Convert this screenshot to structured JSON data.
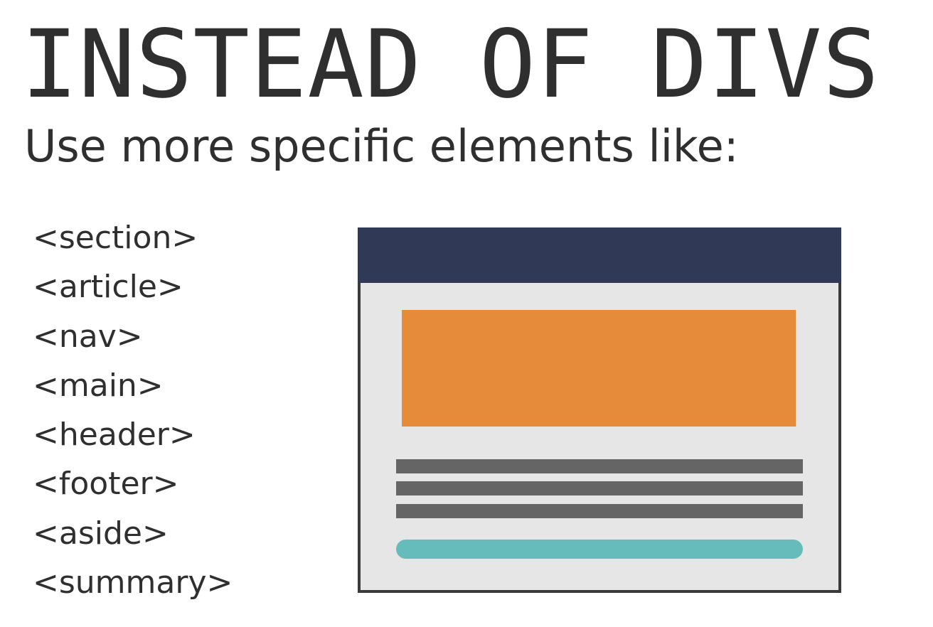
{
  "title": "INSTEAD OF DIVS",
  "subtitle": "Use more specific elements like:",
  "elements": [
    "<section>",
    "<article>",
    "<nav>",
    "<main>",
    "<header>",
    "<footer>",
    "<aside>",
    "<summary>"
  ],
  "colors": {
    "text": "#2f2f2f",
    "mockup_header": "#303a56",
    "mockup_hero": "#e68b39",
    "mockup_lines": "#656565",
    "mockup_button": "#66bcbb",
    "mockup_background": "#e6e6e6",
    "mockup_border": "#3a3a3a"
  }
}
